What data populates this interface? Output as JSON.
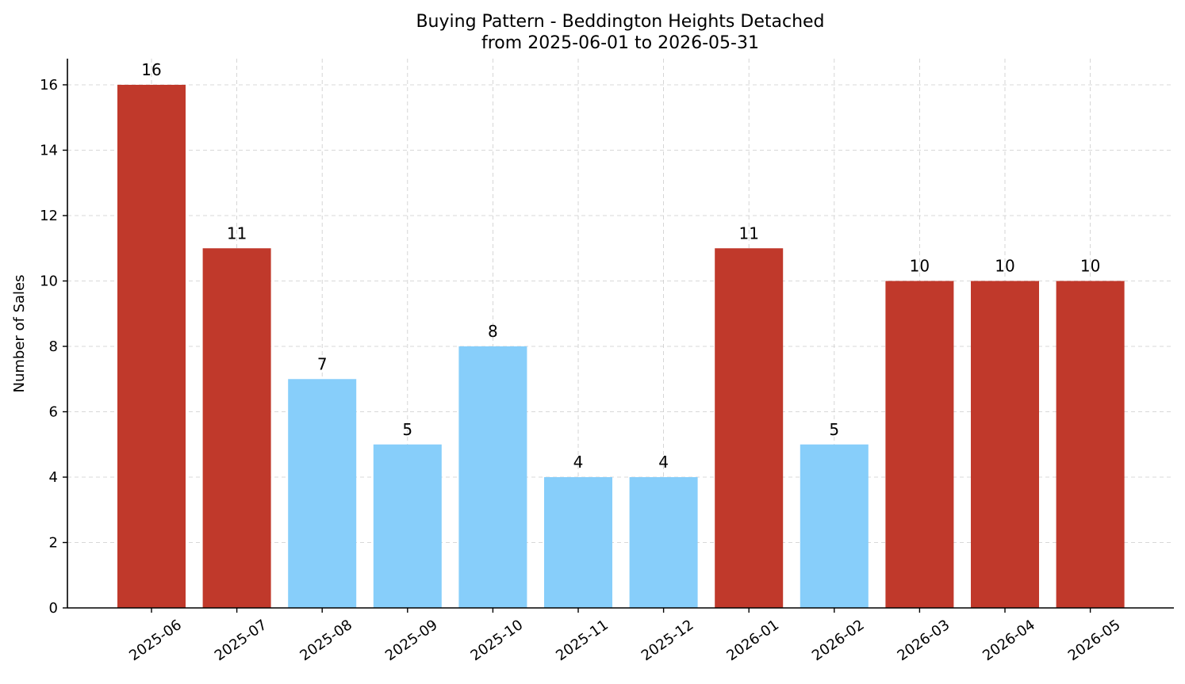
{
  "chart_data": {
    "type": "bar",
    "title": "Buying Pattern - Beddington Heights Detached",
    "subtitle": "from 2025-06-01 to 2026-05-31",
    "xlabel": "",
    "ylabel": "Number of Sales",
    "categories": [
      "2025-06",
      "2025-07",
      "2025-08",
      "2025-09",
      "2025-10",
      "2025-11",
      "2025-12",
      "2026-01",
      "2026-02",
      "2026-03",
      "2026-04",
      "2026-05"
    ],
    "values": [
      16,
      11,
      7,
      5,
      8,
      4,
      4,
      11,
      5,
      10,
      10,
      10
    ],
    "bar_colors": [
      "#c0392b",
      "#c0392b",
      "#87cefa",
      "#87cefa",
      "#87cefa",
      "#87cefa",
      "#87cefa",
      "#c0392b",
      "#87cefa",
      "#c0392b",
      "#c0392b",
      "#c0392b"
    ],
    "ylim": [
      0,
      16.8
    ],
    "yticks": [
      0,
      2,
      4,
      6,
      8,
      10,
      12,
      14,
      16
    ],
    "grid": true,
    "data_labels": true
  }
}
